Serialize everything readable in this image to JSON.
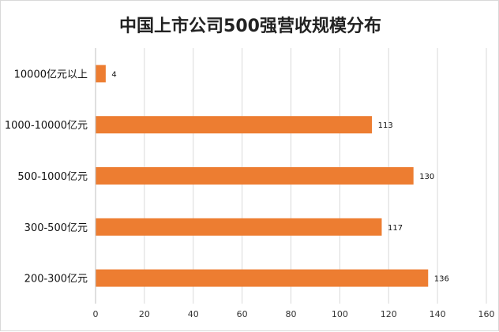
{
  "chart_data": {
    "type": "bar",
    "orientation": "horizontal",
    "title": "中国上市公司500强营收规模分布",
    "categories": [
      "10000亿元以上",
      "1000-10000亿元",
      "500-1000亿元",
      "300-500亿元",
      "200-300亿元"
    ],
    "values": [
      4,
      113,
      130,
      117,
      136
    ],
    "data_labels": [
      "4",
      "113",
      "130",
      "117",
      "136"
    ],
    "xlim": [
      0,
      160
    ],
    "xticks": [
      0,
      20,
      40,
      60,
      80,
      100,
      120,
      140,
      160
    ],
    "xtick_labels": [
      "0",
      "20",
      "40",
      "60",
      "80",
      "100",
      "120",
      "140",
      "160"
    ],
    "xlabel": "",
    "ylabel": "",
    "grid": "vertical",
    "legend": "none",
    "colors": {
      "bar": "#ED7D31",
      "grid": "#D9D9D9",
      "axis": "#BFBFBF"
    }
  }
}
